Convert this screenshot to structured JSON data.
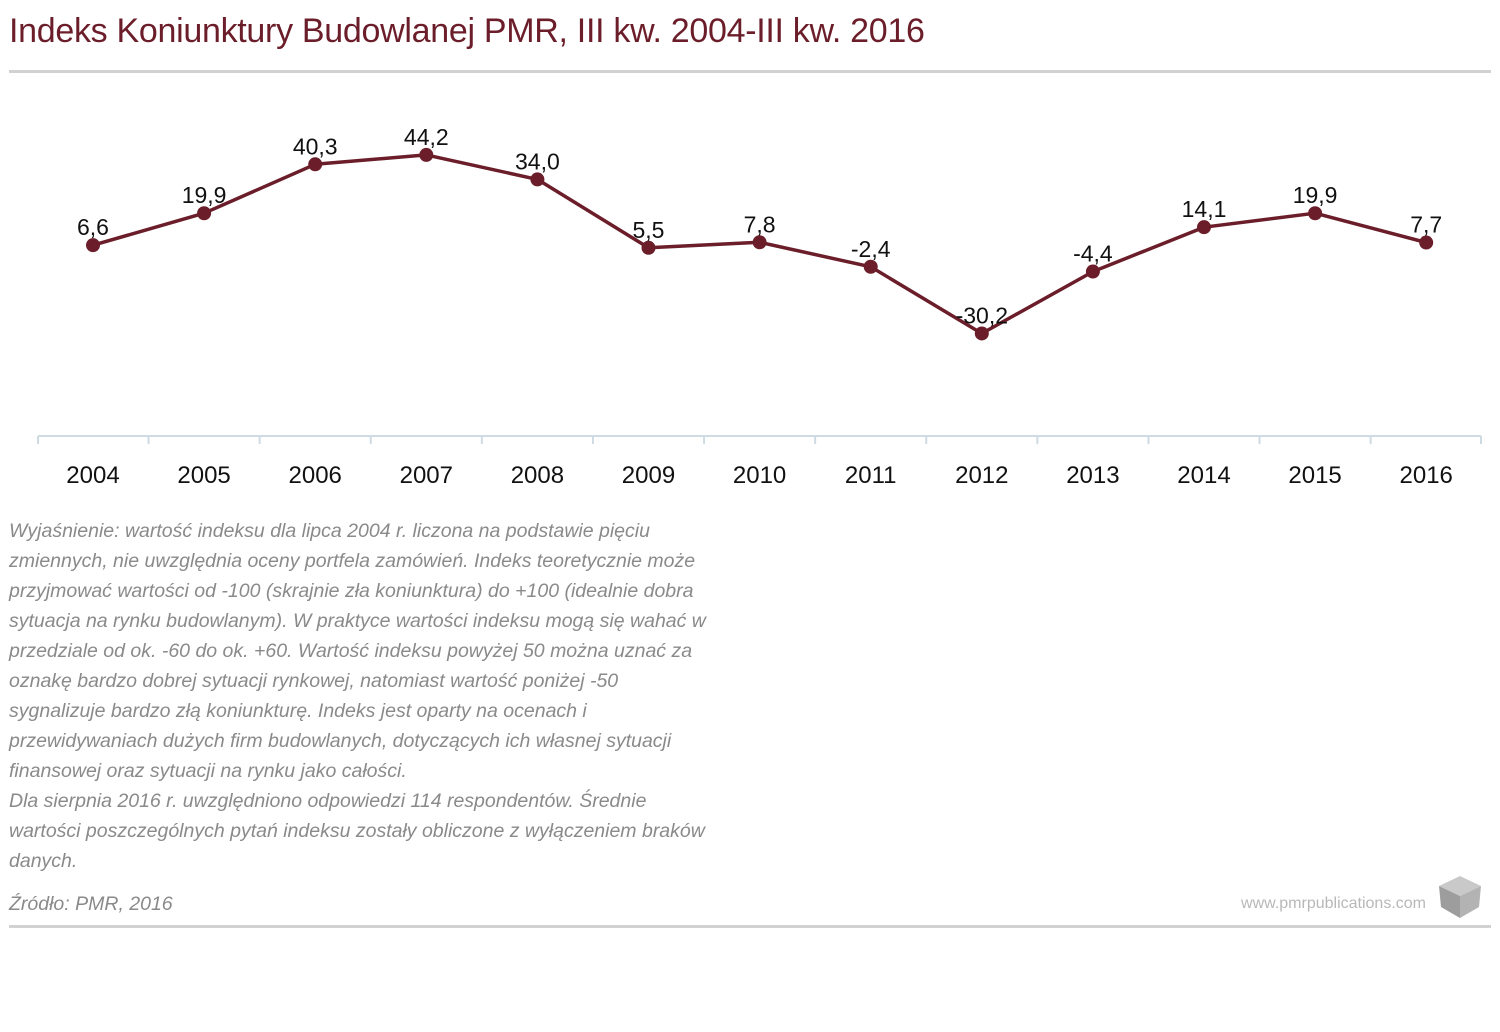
{
  "header": {
    "title": "Indeks Koniunktury Budowlanej PMR, III kw. 2004-III kw. 2016"
  },
  "chart_data": {
    "type": "line",
    "title": "Indeks Koniunktury Budowlanej PMR, III kw. 2004-III kw. 2016",
    "xlabel": "",
    "ylabel": "",
    "categories": [
      "2004",
      "2005",
      "2006",
      "2007",
      "2008",
      "2009",
      "2010",
      "2011",
      "2012",
      "2013",
      "2014",
      "2015",
      "2016"
    ],
    "series": [
      {
        "values": [
          6.6,
          19.9,
          40.3,
          44.2,
          34.0,
          5.5,
          7.8,
          -2.4,
          -30.2,
          -4.4,
          14.1,
          19.9,
          7.7
        ],
        "labels": [
          "6,6",
          "19,9",
          "40,3",
          "44,2",
          "34,0",
          "5,5",
          "7,8",
          "-2,4",
          "-30,2",
          "-4,4",
          "14,1",
          "19,9",
          "7,7"
        ]
      }
    ],
    "ylim": [
      -50,
      50
    ],
    "grid": false,
    "legend": "none",
    "color": "#6b1e2a",
    "axis_color": "#cfdbe3"
  },
  "notes": {
    "paragraph1": "Wyjaśnienie: wartość indeksu dla lipca 2004 r. liczona na podstawie pięciu zmiennych, nie uwzględnia oceny portfela zamówień. Indeks teoretycznie może przyjmować wartości od -100 (skrajnie zła koniunktura) do +100 (idealnie dobra sytuacja na rynku budowlanym). W praktyce wartości indeksu mogą się wahać w przedziale od ok. -60 do ok. +60. Wartość indeksu powyżej 50 można uznać za oznakę bardzo dobrej sytuacji rynkowej, natomiast wartość poniżej -50 sygnalizuje bardzo złą koniunkturę. Indeks jest oparty na ocenach i przewidywaniach dużych firm budowlanych, dotyczących ich własnej sytuacji finansowej oraz sytuacji na rynku jako całości.",
    "paragraph2": "Dla sierpnia 2016 r. uwzględniono odpowiedzi 114 respondentów. Średnie wartości poszczególnych pytań indeksu zostały obliczone z wyłączeniem braków danych."
  },
  "footer": {
    "source": "Źródło: PMR, 2016",
    "website": "www.pmrpublications.com",
    "logo_icon": "cube-logo-icon"
  }
}
